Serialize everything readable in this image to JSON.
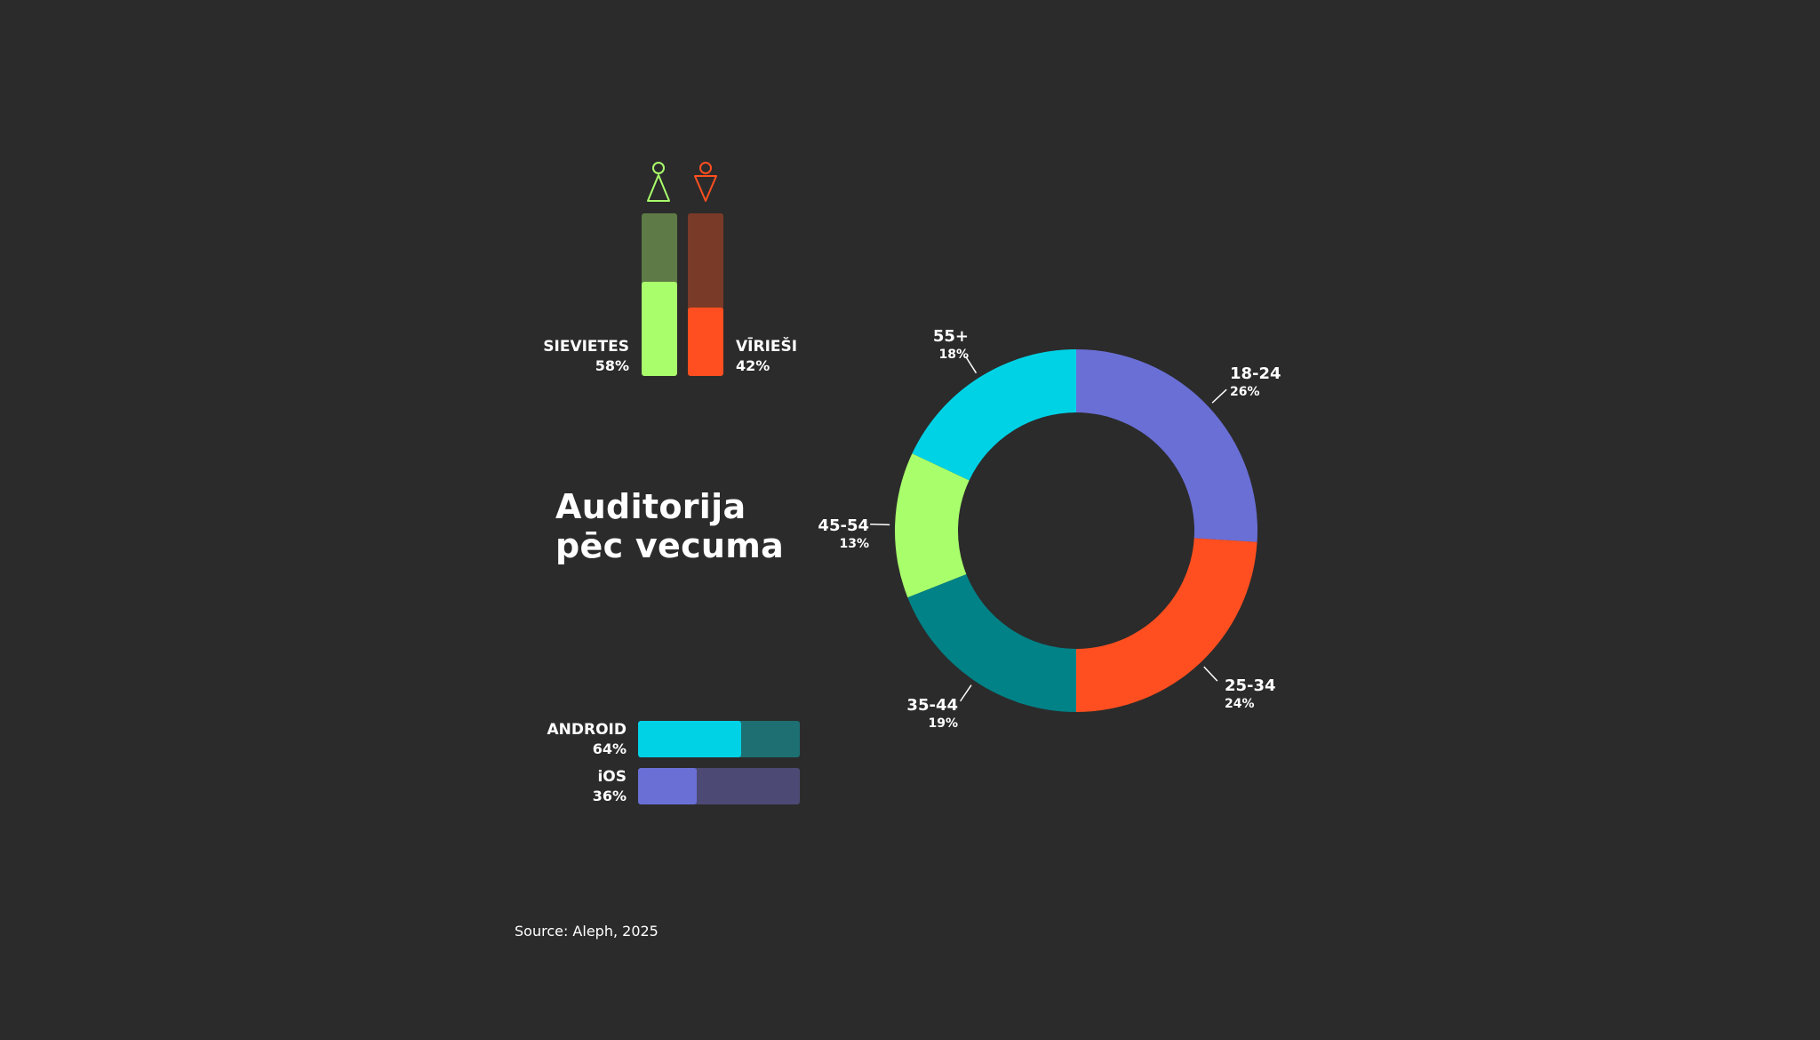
{
  "title": "Auditorija\npēc vecuma",
  "source": "Source: Aleph, 2025",
  "colors": {
    "female": "#a9ff6b",
    "female_track": "#5e7a46",
    "male": "#ff4f20",
    "male_track": "#7a3a28",
    "android": "#00d2e6",
    "android_track": "#1d6f72",
    "ios": "#6a6fd6",
    "ios_track": "#4c4a74"
  },
  "icons": {
    "female": "female-figure-icon",
    "male": "male-figure-icon"
  },
  "gender": [
    {
      "label": "SIEVIETES",
      "value_label": "58%",
      "share": 0.58
    },
    {
      "label": "VĪRIEŠI",
      "value_label": "42%",
      "share": 0.42
    }
  ],
  "platforms": [
    {
      "label": "ANDROID",
      "value_label": "64%",
      "share": 0.64
    },
    {
      "label": "iOS",
      "value_label": "36%",
      "share": 0.36
    }
  ],
  "chart_data": {
    "type": "pie",
    "title": "Auditorija pēc vecuma",
    "categories": [
      "18-24",
      "25-34",
      "35-44",
      "45-54",
      "55+"
    ],
    "values": [
      26,
      24,
      19,
      13,
      18
    ],
    "value_labels": [
      "26%",
      "24%",
      "19%",
      "13%",
      "18%"
    ],
    "colors": [
      "#6a6fd6",
      "#ff4f20",
      "#008287",
      "#a9ff6b",
      "#00d2e6"
    ],
    "donut": true
  }
}
